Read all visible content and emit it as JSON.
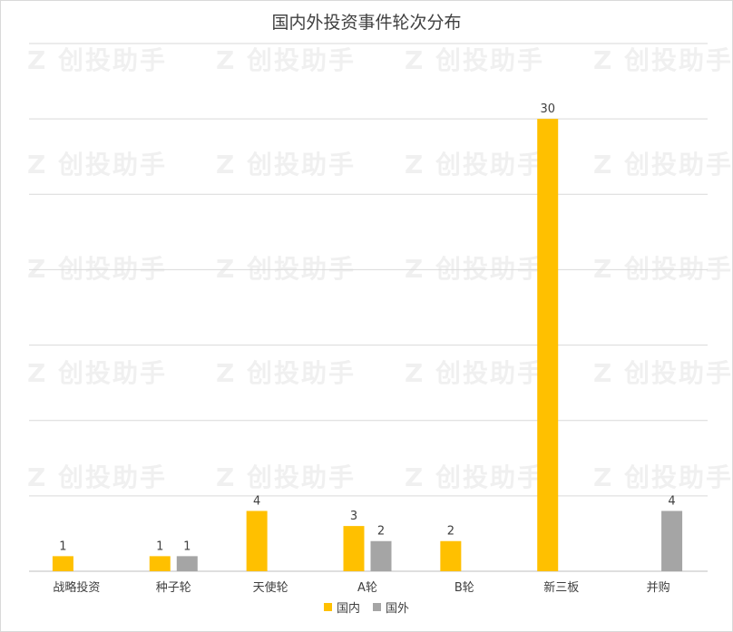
{
  "chart_data": {
    "type": "bar",
    "title": "国内外投资事件轮次分布",
    "categories": [
      "战略投资",
      "种子轮",
      "天使轮",
      "A轮",
      "B轮",
      "新三板",
      "并购"
    ],
    "series": [
      {
        "name": "国内",
        "color": "#FFC000",
        "values": [
          1,
          1,
          4,
          3,
          2,
          30,
          null
        ]
      },
      {
        "name": "国外",
        "color": "#A5A5A5",
        "values": [
          null,
          1,
          null,
          2,
          null,
          null,
          4
        ]
      }
    ],
    "ylim": [
      0,
      35
    ],
    "grid": true,
    "legend": "bottom"
  },
  "watermark": "创投助手"
}
